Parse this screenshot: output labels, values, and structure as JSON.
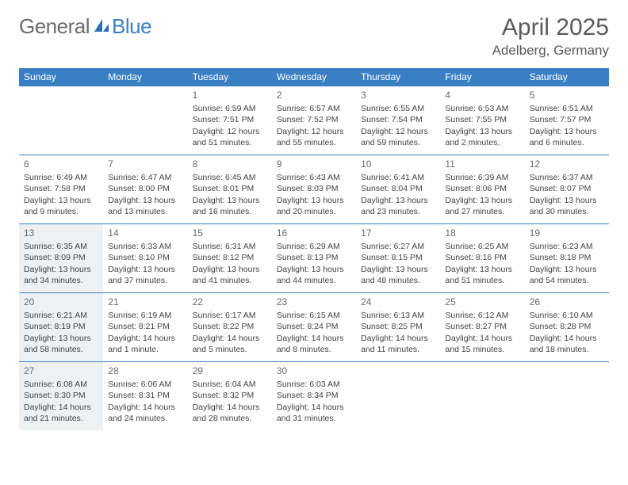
{
  "brand": {
    "part1": "General",
    "part2": "Blue"
  },
  "title": "April 2025",
  "location": "Adelberg, Germany",
  "colors": {
    "header_bg": "#3a7fc4",
    "header_text": "#ffffff",
    "rule": "#3a7fc4",
    "text": "#444444",
    "shaded_bg": "#eef0f2",
    "page_bg": "#ffffff"
  },
  "font": {
    "body_pt": 10.5,
    "daynum_pt": 12,
    "dayhead_pt": 12,
    "title_pt": 30,
    "location_pt": 17
  },
  "day_names": [
    "Sunday",
    "Monday",
    "Tuesday",
    "Wednesday",
    "Thursday",
    "Friday",
    "Saturday"
  ],
  "weeks": [
    [
      {
        "n": "",
        "shaded": false
      },
      {
        "n": "",
        "shaded": false
      },
      {
        "n": "1",
        "shaded": false,
        "sunrise": "Sunrise: 6:59 AM",
        "sunset": "Sunset: 7:51 PM",
        "day1": "Daylight: 12 hours",
        "day2": "and 51 minutes."
      },
      {
        "n": "2",
        "shaded": false,
        "sunrise": "Sunrise: 6:57 AM",
        "sunset": "Sunset: 7:52 PM",
        "day1": "Daylight: 12 hours",
        "day2": "and 55 minutes."
      },
      {
        "n": "3",
        "shaded": false,
        "sunrise": "Sunrise: 6:55 AM",
        "sunset": "Sunset: 7:54 PM",
        "day1": "Daylight: 12 hours",
        "day2": "and 59 minutes."
      },
      {
        "n": "4",
        "shaded": false,
        "sunrise": "Sunrise: 6:53 AM",
        "sunset": "Sunset: 7:55 PM",
        "day1": "Daylight: 13 hours",
        "day2": "and 2 minutes."
      },
      {
        "n": "5",
        "shaded": false,
        "sunrise": "Sunrise: 6:51 AM",
        "sunset": "Sunset: 7:57 PM",
        "day1": "Daylight: 13 hours",
        "day2": "and 6 minutes."
      }
    ],
    [
      {
        "n": "6",
        "shaded": false,
        "sunrise": "Sunrise: 6:49 AM",
        "sunset": "Sunset: 7:58 PM",
        "day1": "Daylight: 13 hours",
        "day2": "and 9 minutes."
      },
      {
        "n": "7",
        "shaded": false,
        "sunrise": "Sunrise: 6:47 AM",
        "sunset": "Sunset: 8:00 PM",
        "day1": "Daylight: 13 hours",
        "day2": "and 13 minutes."
      },
      {
        "n": "8",
        "shaded": false,
        "sunrise": "Sunrise: 6:45 AM",
        "sunset": "Sunset: 8:01 PM",
        "day1": "Daylight: 13 hours",
        "day2": "and 16 minutes."
      },
      {
        "n": "9",
        "shaded": false,
        "sunrise": "Sunrise: 6:43 AM",
        "sunset": "Sunset: 8:03 PM",
        "day1": "Daylight: 13 hours",
        "day2": "and 20 minutes."
      },
      {
        "n": "10",
        "shaded": false,
        "sunrise": "Sunrise: 6:41 AM",
        "sunset": "Sunset: 8:04 PM",
        "day1": "Daylight: 13 hours",
        "day2": "and 23 minutes."
      },
      {
        "n": "11",
        "shaded": false,
        "sunrise": "Sunrise: 6:39 AM",
        "sunset": "Sunset: 8:06 PM",
        "day1": "Daylight: 13 hours",
        "day2": "and 27 minutes."
      },
      {
        "n": "12",
        "shaded": false,
        "sunrise": "Sunrise: 6:37 AM",
        "sunset": "Sunset: 8:07 PM",
        "day1": "Daylight: 13 hours",
        "day2": "and 30 minutes."
      }
    ],
    [
      {
        "n": "13",
        "shaded": true,
        "sunrise": "Sunrise: 6:35 AM",
        "sunset": "Sunset: 8:09 PM",
        "day1": "Daylight: 13 hours",
        "day2": "and 34 minutes."
      },
      {
        "n": "14",
        "shaded": false,
        "sunrise": "Sunrise: 6:33 AM",
        "sunset": "Sunset: 8:10 PM",
        "day1": "Daylight: 13 hours",
        "day2": "and 37 minutes."
      },
      {
        "n": "15",
        "shaded": false,
        "sunrise": "Sunrise: 6:31 AM",
        "sunset": "Sunset: 8:12 PM",
        "day1": "Daylight: 13 hours",
        "day2": "and 41 minutes."
      },
      {
        "n": "16",
        "shaded": false,
        "sunrise": "Sunrise: 6:29 AM",
        "sunset": "Sunset: 8:13 PM",
        "day1": "Daylight: 13 hours",
        "day2": "and 44 minutes."
      },
      {
        "n": "17",
        "shaded": false,
        "sunrise": "Sunrise: 6:27 AM",
        "sunset": "Sunset: 8:15 PM",
        "day1": "Daylight: 13 hours",
        "day2": "and 48 minutes."
      },
      {
        "n": "18",
        "shaded": false,
        "sunrise": "Sunrise: 6:25 AM",
        "sunset": "Sunset: 8:16 PM",
        "day1": "Daylight: 13 hours",
        "day2": "and 51 minutes."
      },
      {
        "n": "19",
        "shaded": false,
        "sunrise": "Sunrise: 6:23 AM",
        "sunset": "Sunset: 8:18 PM",
        "day1": "Daylight: 13 hours",
        "day2": "and 54 minutes."
      }
    ],
    [
      {
        "n": "20",
        "shaded": true,
        "sunrise": "Sunrise: 6:21 AM",
        "sunset": "Sunset: 8:19 PM",
        "day1": "Daylight: 13 hours",
        "day2": "and 58 minutes."
      },
      {
        "n": "21",
        "shaded": false,
        "sunrise": "Sunrise: 6:19 AM",
        "sunset": "Sunset: 8:21 PM",
        "day1": "Daylight: 14 hours",
        "day2": "and 1 minute."
      },
      {
        "n": "22",
        "shaded": false,
        "sunrise": "Sunrise: 6:17 AM",
        "sunset": "Sunset: 8:22 PM",
        "day1": "Daylight: 14 hours",
        "day2": "and 5 minutes."
      },
      {
        "n": "23",
        "shaded": false,
        "sunrise": "Sunrise: 6:15 AM",
        "sunset": "Sunset: 8:24 PM",
        "day1": "Daylight: 14 hours",
        "day2": "and 8 minutes."
      },
      {
        "n": "24",
        "shaded": false,
        "sunrise": "Sunrise: 6:13 AM",
        "sunset": "Sunset: 8:25 PM",
        "day1": "Daylight: 14 hours",
        "day2": "and 11 minutes."
      },
      {
        "n": "25",
        "shaded": false,
        "sunrise": "Sunrise: 6:12 AM",
        "sunset": "Sunset: 8:27 PM",
        "day1": "Daylight: 14 hours",
        "day2": "and 15 minutes."
      },
      {
        "n": "26",
        "shaded": false,
        "sunrise": "Sunrise: 6:10 AM",
        "sunset": "Sunset: 8:28 PM",
        "day1": "Daylight: 14 hours",
        "day2": "and 18 minutes."
      }
    ],
    [
      {
        "n": "27",
        "shaded": true,
        "sunrise": "Sunrise: 6:08 AM",
        "sunset": "Sunset: 8:30 PM",
        "day1": "Daylight: 14 hours",
        "day2": "and 21 minutes."
      },
      {
        "n": "28",
        "shaded": false,
        "sunrise": "Sunrise: 6:06 AM",
        "sunset": "Sunset: 8:31 PM",
        "day1": "Daylight: 14 hours",
        "day2": "and 24 minutes."
      },
      {
        "n": "29",
        "shaded": false,
        "sunrise": "Sunrise: 6:04 AM",
        "sunset": "Sunset: 8:32 PM",
        "day1": "Daylight: 14 hours",
        "day2": "and 28 minutes."
      },
      {
        "n": "30",
        "shaded": false,
        "sunrise": "Sunrise: 6:03 AM",
        "sunset": "Sunset: 8:34 PM",
        "day1": "Daylight: 14 hours",
        "day2": "and 31 minutes."
      },
      {
        "n": "",
        "shaded": false
      },
      {
        "n": "",
        "shaded": false
      },
      {
        "n": "",
        "shaded": false
      }
    ]
  ]
}
